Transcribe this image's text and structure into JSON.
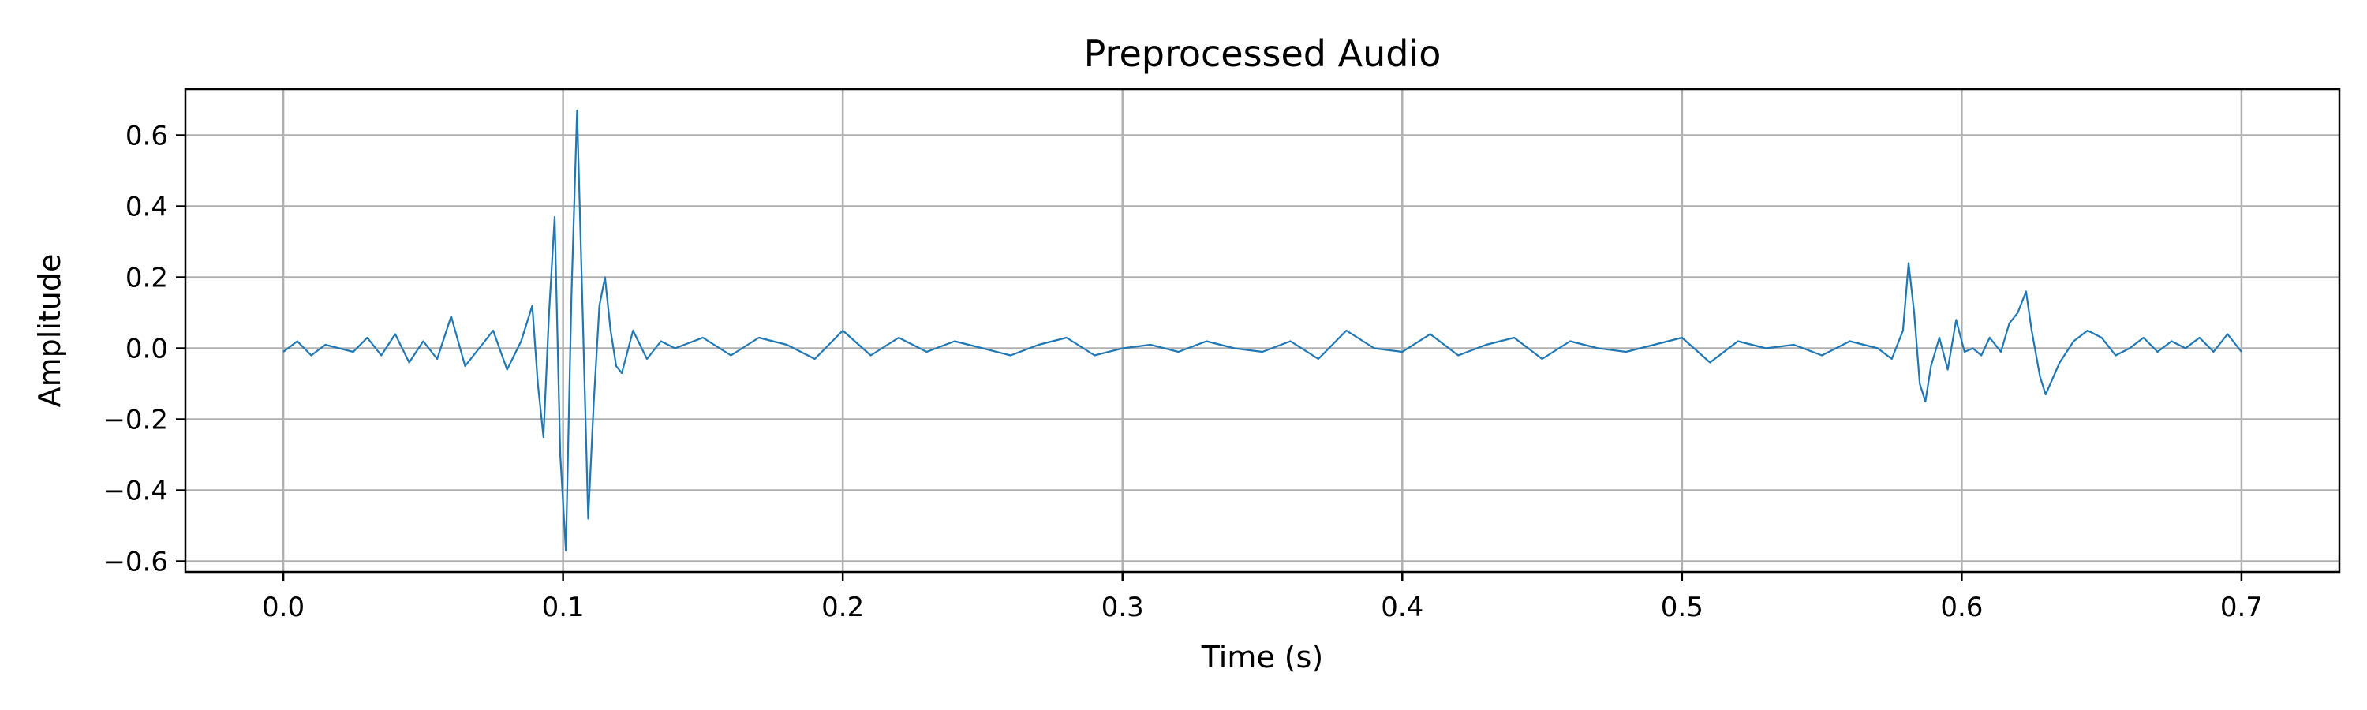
{
  "chart_data": {
    "type": "line",
    "title": "Preprocessed Audio",
    "xlabel": "Time (s)",
    "ylabel": "Amplitude",
    "xlim": [
      -0.035,
      0.735
    ],
    "ylim": [
      -0.63,
      0.73
    ],
    "grid": true,
    "line_color": "#1f77b4",
    "grid_color": "#b0b0b0",
    "xticks": [
      0.0,
      0.1,
      0.2,
      0.3,
      0.4,
      0.5,
      0.6,
      0.7
    ],
    "xtick_labels": [
      "0.0",
      "0.1",
      "0.2",
      "0.3",
      "0.4",
      "0.5",
      "0.6",
      "0.7"
    ],
    "yticks": [
      0.6,
      0.4,
      0.2,
      0.0,
      -0.2,
      -0.4,
      -0.6
    ],
    "ytick_labels": [
      "0.6",
      "0.4",
      "0.2",
      "0.0",
      "−0.2",
      "−0.4",
      "−0.6"
    ],
    "series": [
      {
        "x": [
          0.0,
          0.005,
          0.01,
          0.015,
          0.02,
          0.025,
          0.03,
          0.035,
          0.04,
          0.045,
          0.05,
          0.055,
          0.06,
          0.065,
          0.07,
          0.075,
          0.08,
          0.085,
          0.089,
          0.091,
          0.093,
          0.095,
          0.097,
          0.099,
          0.101,
          0.103,
          0.105,
          0.107,
          0.109,
          0.111,
          0.113,
          0.115,
          0.117,
          0.119,
          0.121,
          0.125,
          0.13,
          0.135,
          0.14,
          0.15,
          0.16,
          0.17,
          0.18,
          0.19,
          0.2,
          0.21,
          0.22,
          0.23,
          0.24,
          0.25,
          0.26,
          0.27,
          0.28,
          0.29,
          0.3,
          0.31,
          0.32,
          0.33,
          0.34,
          0.35,
          0.36,
          0.37,
          0.38,
          0.39,
          0.4,
          0.41,
          0.42,
          0.43,
          0.44,
          0.45,
          0.46,
          0.47,
          0.48,
          0.49,
          0.5,
          0.51,
          0.52,
          0.53,
          0.54,
          0.55,
          0.56,
          0.57,
          0.575,
          0.579,
          0.581,
          0.583,
          0.585,
          0.587,
          0.589,
          0.592,
          0.595,
          0.598,
          0.601,
          0.604,
          0.607,
          0.61,
          0.614,
          0.617,
          0.62,
          0.623,
          0.625,
          0.628,
          0.63,
          0.635,
          0.64,
          0.645,
          0.65,
          0.655,
          0.66,
          0.665,
          0.67,
          0.675,
          0.68,
          0.685,
          0.69,
          0.695,
          0.7
        ],
        "y": [
          -0.01,
          0.02,
          -0.02,
          0.01,
          0.0,
          -0.01,
          0.03,
          -0.02,
          0.04,
          -0.04,
          0.02,
          -0.03,
          0.09,
          -0.05,
          0.0,
          0.05,
          -0.06,
          0.02,
          0.12,
          -0.1,
          -0.25,
          0.1,
          0.37,
          -0.3,
          -0.57,
          0.15,
          0.67,
          0.1,
          -0.48,
          -0.15,
          0.12,
          0.2,
          0.05,
          -0.05,
          -0.07,
          0.05,
          -0.03,
          0.02,
          0.0,
          0.03,
          -0.02,
          0.03,
          0.01,
          -0.03,
          0.05,
          -0.02,
          0.03,
          -0.01,
          0.02,
          0.0,
          -0.02,
          0.01,
          0.03,
          -0.02,
          0.0,
          0.01,
          -0.01,
          0.02,
          0.0,
          -0.01,
          0.02,
          -0.03,
          0.05,
          0.0,
          -0.01,
          0.04,
          -0.02,
          0.01,
          0.03,
          -0.03,
          0.02,
          0.0,
          -0.01,
          0.01,
          0.03,
          -0.04,
          0.02,
          0.0,
          0.01,
          -0.02,
          0.02,
          0.0,
          -0.03,
          0.05,
          0.24,
          0.1,
          -0.1,
          -0.15,
          -0.05,
          0.03,
          -0.06,
          0.08,
          -0.01,
          0.0,
          -0.02,
          0.03,
          -0.01,
          0.07,
          0.1,
          0.16,
          0.05,
          -0.08,
          -0.13,
          -0.04,
          0.02,
          0.05,
          0.03,
          -0.02,
          0.0,
          0.03,
          -0.01,
          0.02,
          0.0,
          0.03,
          -0.01,
          0.04,
          -0.01
        ]
      }
    ]
  }
}
